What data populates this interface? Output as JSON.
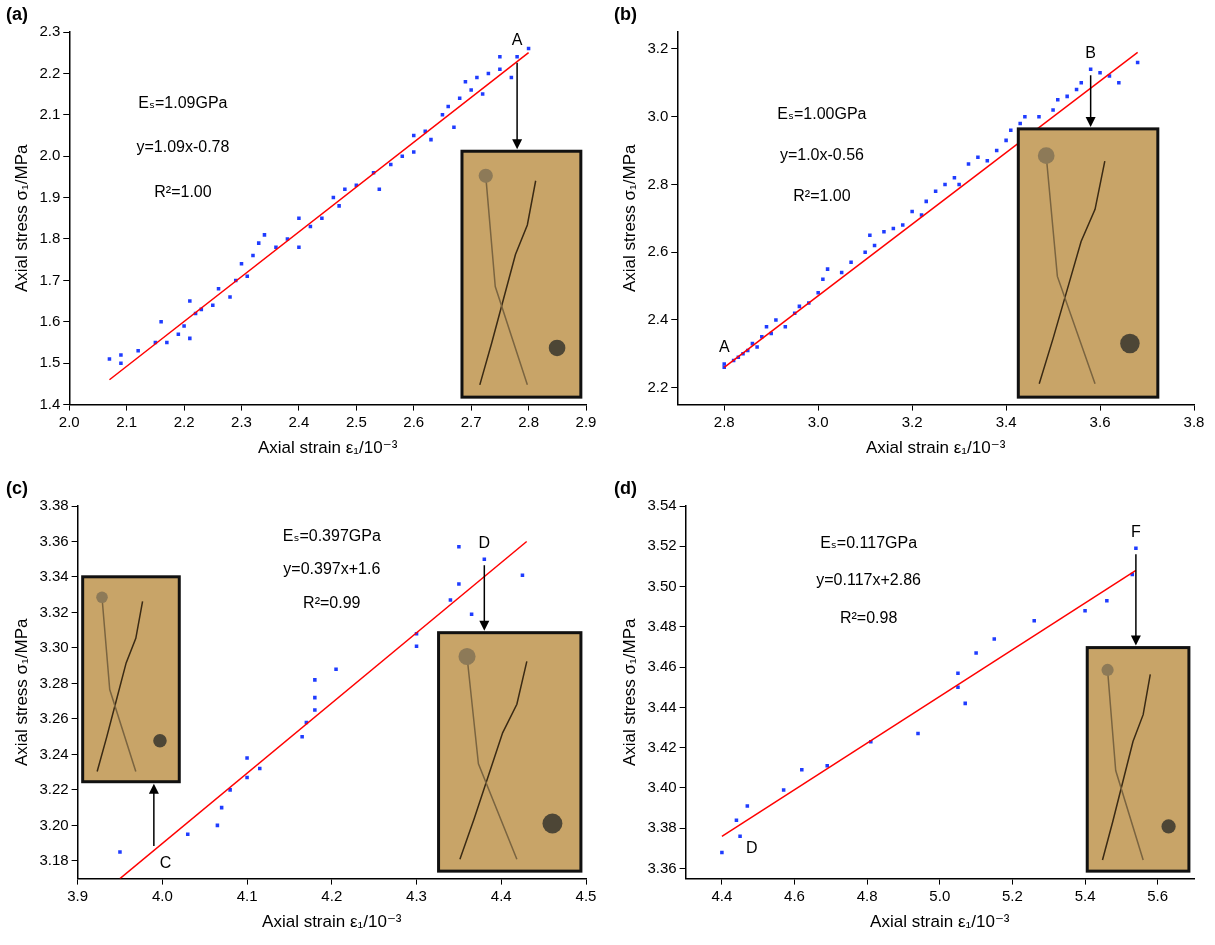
{
  "chart_data": [
    {
      "panel": "(a)",
      "type": "scatter",
      "x_label": "Axial strain ε₁/10⁻³",
      "y_label": "Axial stress σ₁/MPa",
      "xlim": [
        2.0,
        2.9
      ],
      "xticks": [
        {
          "value": 2.0,
          "label": "2.0"
        },
        2.1,
        2.2,
        2.3,
        2.4,
        2.5,
        2.6,
        2.7,
        2.8,
        2.9
      ],
      "ylim": [
        1.4,
        2.3
      ],
      "yticks": [
        1.4,
        1.5,
        1.6,
        1.7,
        1.8,
        1.9,
        {
          "value": 2.0,
          "label": "2.0"
        },
        2.1,
        2.2,
        2.3
      ],
      "grid": false,
      "annotations": [
        "Eₛ=1.09GPa",
        "y=1.09x-0.78",
        "R²=1.00"
      ],
      "point_labels": [
        {
          "text": "A",
          "x": 2.78,
          "y": 2.24
        }
      ],
      "series": [
        {
          "type": "scatter",
          "color": "#1f3cff",
          "marker": "square",
          "x": [
            2.07,
            2.09,
            2.09,
            2.12,
            2.15,
            2.16,
            2.17,
            2.19,
            2.2,
            2.21,
            2.21,
            2.22,
            2.23,
            2.25,
            2.26,
            2.28,
            2.29,
            2.3,
            2.31,
            2.32,
            2.33,
            2.34,
            2.36,
            2.38,
            2.4,
            2.4,
            2.42,
            2.44,
            2.46,
            2.47,
            2.48,
            2.5,
            2.53,
            2.54,
            2.56,
            2.58,
            2.6,
            2.6,
            2.62,
            2.63,
            2.65,
            2.66,
            2.67,
            2.68,
            2.69,
            2.7,
            2.71,
            2.72,
            2.73,
            2.75,
            2.75,
            2.77,
            2.78,
            2.8
          ],
          "values": [
            1.51,
            1.52,
            1.5,
            1.53,
            1.55,
            1.6,
            1.55,
            1.57,
            1.59,
            1.65,
            1.56,
            1.62,
            1.63,
            1.64,
            1.68,
            1.66,
            1.7,
            1.74,
            1.71,
            1.76,
            1.79,
            1.81,
            1.78,
            1.8,
            1.85,
            1.78,
            1.83,
            1.85,
            1.9,
            1.88,
            1.92,
            1.93,
            1.96,
            1.92,
            1.98,
            2.0,
            2.05,
            2.01,
            2.06,
            2.04,
            2.1,
            2.12,
            2.07,
            2.14,
            2.18,
            2.16,
            2.19,
            2.15,
            2.2,
            2.24,
            2.21,
            2.19,
            2.24,
            2.26
          ]
        },
        {
          "type": "line",
          "color": "#ff0000",
          "line_style": "solid",
          "x": [
            2.07,
            2.8
          ],
          "values": [
            1.46,
            2.25
          ]
        }
      ]
    },
    {
      "panel": "(b)",
      "type": "scatter",
      "x_label": "Axial strain ε₁/10⁻³",
      "y_label": "Axial stress σ₁/MPa",
      "xlim": [
        2.7,
        3.8
      ],
      "xticks": [
        2.8,
        {
          "value": 3.0,
          "label": "3.0"
        },
        3.2,
        3.4,
        3.6,
        3.8
      ],
      "ylim": [
        2.15,
        3.25
      ],
      "yticks": [
        2.2,
        2.4,
        2.6,
        2.8,
        {
          "value": 3.0,
          "label": "3.0"
        },
        3.2
      ],
      "grid": false,
      "annotations": [
        "Eₛ=1.00GPa",
        "y=1.0x-0.56",
        "R²=1.00"
      ],
      "point_labels": [
        {
          "text": "A",
          "x": 2.8,
          "y": 2.27
        },
        {
          "text": "B",
          "x": 3.58,
          "y": 3.14
        }
      ],
      "series": [
        {
          "type": "scatter",
          "color": "#1f3cff",
          "marker": "square",
          "x": [
            2.8,
            2.8,
            2.82,
            2.83,
            2.84,
            2.85,
            2.86,
            2.87,
            2.88,
            2.89,
            2.9,
            2.91,
            2.93,
            2.95,
            2.96,
            2.98,
            3.0,
            3.01,
            3.02,
            3.05,
            3.07,
            3.1,
            3.11,
            3.12,
            3.14,
            3.16,
            3.18,
            3.2,
            3.22,
            3.23,
            3.25,
            3.27,
            3.29,
            3.3,
            3.32,
            3.34,
            3.36,
            3.38,
            3.4,
            3.41,
            3.43,
            3.44,
            3.47,
            3.5,
            3.51,
            3.53,
            3.55,
            3.56,
            3.58,
            3.6,
            3.62,
            3.64,
            3.68
          ],
          "values": [
            2.26,
            2.27,
            2.28,
            2.29,
            2.3,
            2.31,
            2.33,
            2.32,
            2.35,
            2.38,
            2.36,
            2.4,
            2.38,
            2.42,
            2.44,
            2.45,
            2.48,
            2.52,
            2.55,
            2.54,
            2.57,
            2.6,
            2.65,
            2.62,
            2.66,
            2.67,
            2.68,
            2.72,
            2.71,
            2.75,
            2.78,
            2.8,
            2.82,
            2.8,
            2.86,
            2.88,
            2.87,
            2.9,
            2.93,
            2.96,
            2.98,
            3.0,
            3.0,
            3.02,
            3.05,
            3.06,
            3.08,
            3.1,
            3.14,
            3.13,
            3.12,
            3.1,
            3.16
          ]
        },
        {
          "type": "line",
          "color": "#ff0000",
          "line_style": "solid",
          "x": [
            2.8,
            3.68
          ],
          "values": [
            2.26,
            3.19
          ]
        }
      ]
    },
    {
      "panel": "(c)",
      "type": "scatter",
      "x_label": "Axial strain ε₁/10⁻³",
      "y_label": "Axial stress σ₁/MPa",
      "xlim": [
        3.9,
        4.5
      ],
      "xticks": [
        3.9,
        {
          "value": 4.0,
          "label": "4.0"
        },
        4.1,
        4.2,
        4.3,
        4.4,
        4.5
      ],
      "ylim": [
        3.17,
        3.38
      ],
      "yticks": [
        3.18,
        {
          "value": 3.2,
          "label": "3.20"
        },
        3.22,
        3.24,
        3.26,
        3.28,
        {
          "value": 3.3,
          "label": "3.30"
        },
        3.32,
        3.34,
        3.36,
        3.38
      ],
      "grid": false,
      "annotations": [
        "Eₛ=0.397GPa",
        "y=0.397x+1.6",
        "R²=0.99"
      ],
      "point_labels": [
        {
          "text": "C",
          "x": 3.99,
          "y": 3.185
        },
        {
          "text": "D",
          "x": 4.38,
          "y": 3.35
        }
      ],
      "series": [
        {
          "type": "scatter",
          "color": "#1f3cff",
          "marker": "square",
          "x": [
            3.95,
            4.03,
            4.065,
            4.07,
            4.08,
            4.1,
            4.1,
            4.115,
            4.165,
            4.17,
            4.18,
            4.18,
            4.18,
            4.205,
            4.3,
            4.3,
            4.34,
            4.35,
            4.35,
            4.365,
            4.38,
            4.425
          ],
          "values": [
            3.185,
            3.195,
            3.2,
            3.21,
            3.22,
            3.227,
            3.238,
            3.232,
            3.25,
            3.258,
            3.265,
            3.272,
            3.282,
            3.288,
            3.301,
            3.308,
            3.327,
            3.336,
            3.357,
            3.319,
            3.35,
            3.341
          ]
        },
        {
          "type": "line",
          "color": "#ff0000",
          "line_style": "solid",
          "x": [
            3.95,
            4.43
          ],
          "values": [
            3.17,
            3.36
          ]
        }
      ]
    },
    {
      "panel": "(d)",
      "type": "scatter",
      "x_label": "Axial strain ε₁/10⁻³",
      "y_label": "Axial stress σ₁/MPa",
      "xlim": [
        4.3,
        5.7
      ],
      "xticks": [
        4.4,
        4.6,
        4.8,
        {
          "value": 5.0,
          "label": "5.0"
        },
        5.2,
        5.4,
        5.6
      ],
      "ylim": [
        3.355,
        3.54
      ],
      "yticks": [
        3.36,
        3.38,
        {
          "value": 3.4,
          "label": "3.40"
        },
        3.42,
        3.44,
        3.46,
        3.48,
        {
          "value": 3.5,
          "label": "3.50"
        },
        3.52,
        3.54
      ],
      "grid": false,
      "annotations": [
        "Eₛ=0.117GPa",
        "y=0.117x+2.86",
        "R²=0.98"
      ],
      "point_labels": [
        {
          "text": "D",
          "x": 4.45,
          "y": 3.376
        },
        {
          "text": "F",
          "x": 5.54,
          "y": 3.519
        }
      ],
      "series": [
        {
          "type": "scatter",
          "color": "#1f3cff",
          "marker": "square",
          "x": [
            4.4,
            4.44,
            4.45,
            4.47,
            4.57,
            4.62,
            4.69,
            4.81,
            4.94,
            5.05,
            5.05,
            5.07,
            5.1,
            5.15,
            5.26,
            5.4,
            5.46,
            5.53,
            5.54
          ],
          "values": [
            3.368,
            3.384,
            3.376,
            3.391,
            3.399,
            3.409,
            3.411,
            3.423,
            3.427,
            3.45,
            3.457,
            3.442,
            3.467,
            3.474,
            3.483,
            3.488,
            3.493,
            3.506,
            3.519
          ]
        },
        {
          "type": "line",
          "color": "#ff0000",
          "line_style": "solid",
          "x": [
            4.4,
            5.54
          ],
          "values": [
            3.376,
            3.508
          ]
        }
      ]
    }
  ]
}
